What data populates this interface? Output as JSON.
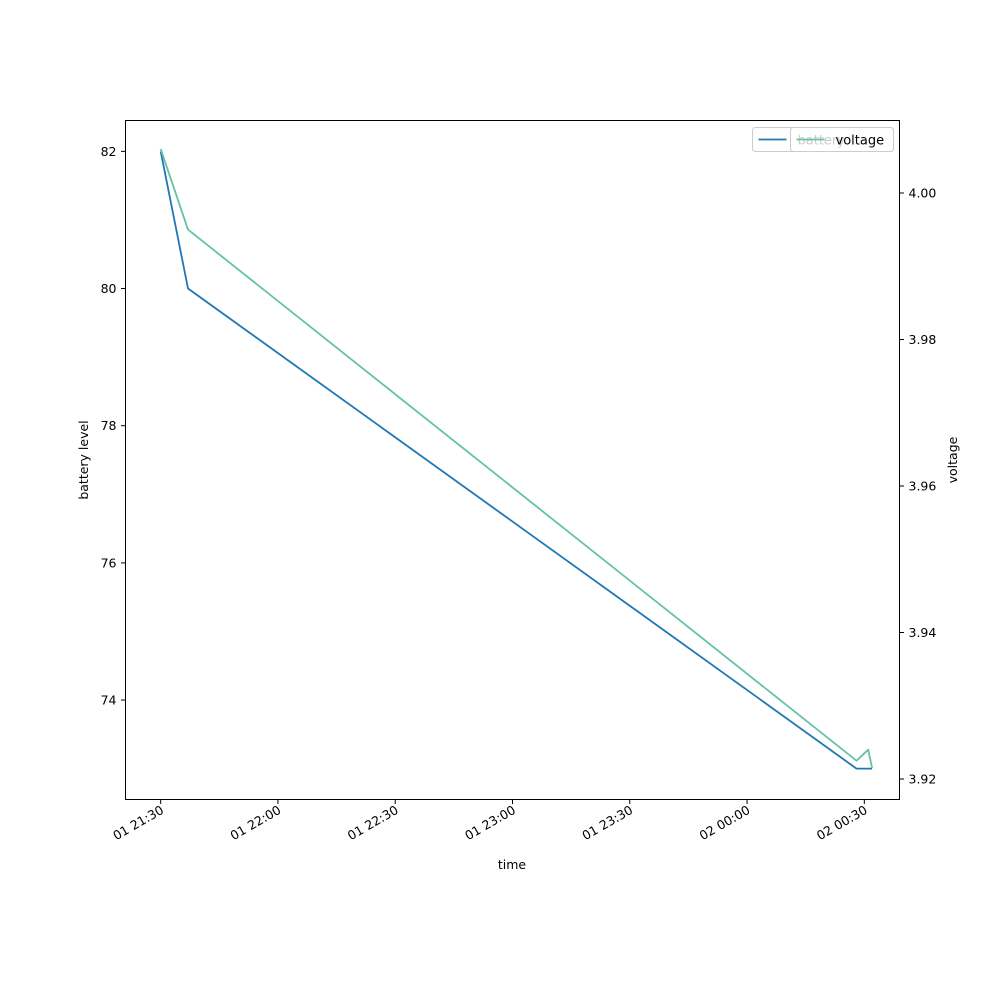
{
  "chart_data": {
    "type": "line",
    "xlabel": "time",
    "ylabel_left": "battery level",
    "ylabel_right": "voltage",
    "x_ticks": [
      "01 21:30",
      "01 22:00",
      "01 22:30",
      "01 23:00",
      "01 23:30",
      "02 00:00",
      "02 00:30"
    ],
    "x_range": [
      "01 21:21",
      "02 00:39"
    ],
    "y_left_ticks": [
      74,
      76,
      78,
      80,
      82
    ],
    "y_left_range": [
      72.55,
      82.45
    ],
    "y_right_ticks": [
      3.92,
      3.94,
      3.96,
      3.98,
      4.0
    ],
    "y_right_range": [
      3.9172,
      4.0099
    ],
    "grid": false,
    "legend_position": "upper right",
    "series": [
      {
        "name": "battery",
        "axis": "left",
        "color": "#1f77b4",
        "points": [
          {
            "x": "01 21:30",
            "y": 82
          },
          {
            "x": "01 21:37",
            "y": 80
          },
          {
            "x": "02 00:28",
            "y": 73
          },
          {
            "x": "02 00:32",
            "y": 73
          }
        ]
      },
      {
        "name": "voltage",
        "axis": "right",
        "color": "#66c2a5",
        "points": [
          {
            "x": "01 21:30",
            "y": 4.006
          },
          {
            "x": "01 21:37",
            "y": 3.995
          },
          {
            "x": "02 00:28",
            "y": 3.9225
          },
          {
            "x": "02 00:31",
            "y": 3.924
          },
          {
            "x": "02 00:32",
            "y": 3.9215
          }
        ]
      }
    ]
  }
}
